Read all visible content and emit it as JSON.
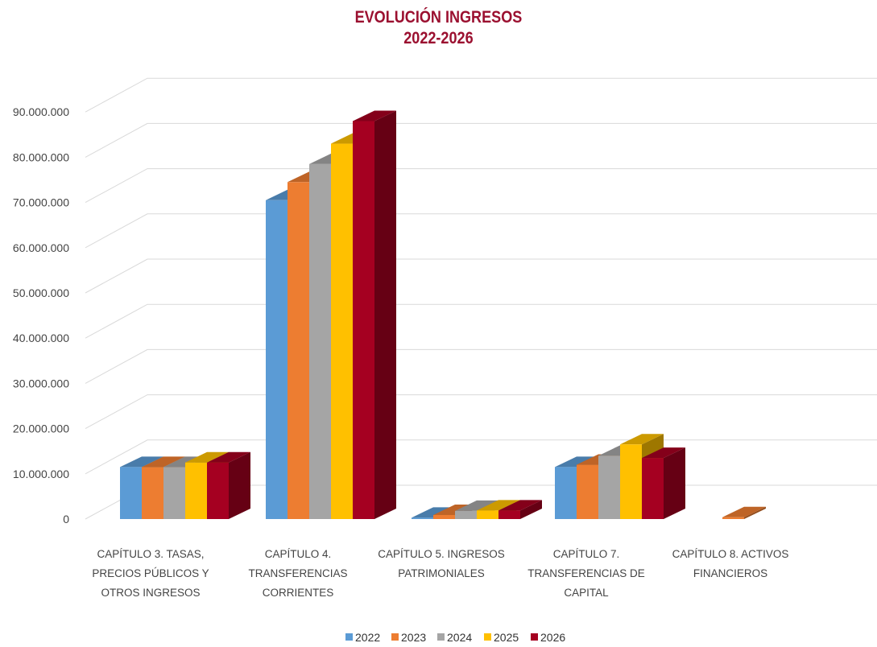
{
  "chart_data": {
    "type": "bar",
    "title": "EVOLUCIÓN INGRESOS",
    "subtitle": "2022-2026",
    "categories": [
      [
        "CAPÍTULO 3. TASAS,",
        "PRECIOS PÚBLICOS Y",
        "OTROS INGRESOS"
      ],
      [
        "CAPÍTULO 4.",
        "TRANSFERENCIAS",
        "CORRIENTES"
      ],
      [
        "CAPÍTULO 5. INGRESOS",
        "PATRIMONIALES"
      ],
      [
        "CAPÍTULO 7.",
        "TRANSFERENCIAS DE",
        "CAPITAL"
      ],
      [
        "CAPÍTULO 8. ACTIVOS",
        "FINANCIEROS"
      ]
    ],
    "series": [
      {
        "name": "2022",
        "color": "#5b9bd5",
        "values": [
          11500000,
          70500000,
          300000,
          11500000,
          0
        ]
      },
      {
        "name": "2023",
        "color": "#ed7d31",
        "values": [
          11500000,
          74500000,
          900000,
          12000000,
          400000
        ]
      },
      {
        "name": "2024",
        "color": "#a5a5a5",
        "values": [
          11500000,
          78500000,
          1800000,
          14000000,
          0
        ]
      },
      {
        "name": "2025",
        "color": "#ffc000",
        "values": [
          12500000,
          83000000,
          1900000,
          16500000,
          0
        ]
      },
      {
        "name": "2026",
        "color": "#a50021",
        "values": [
          12500000,
          88000000,
          1900000,
          13500000,
          0
        ]
      }
    ],
    "ylim": [
      0,
      90000000
    ],
    "yticks": [
      "0",
      "10.000.000",
      "20.000.000",
      "30.000.000",
      "40.000.000",
      "50.000.000",
      "60.000.000",
      "70.000.000",
      "80.000.000",
      "90.000.000"
    ],
    "grid": true,
    "legend": "bottom",
    "style": "3d-clustered-column"
  }
}
